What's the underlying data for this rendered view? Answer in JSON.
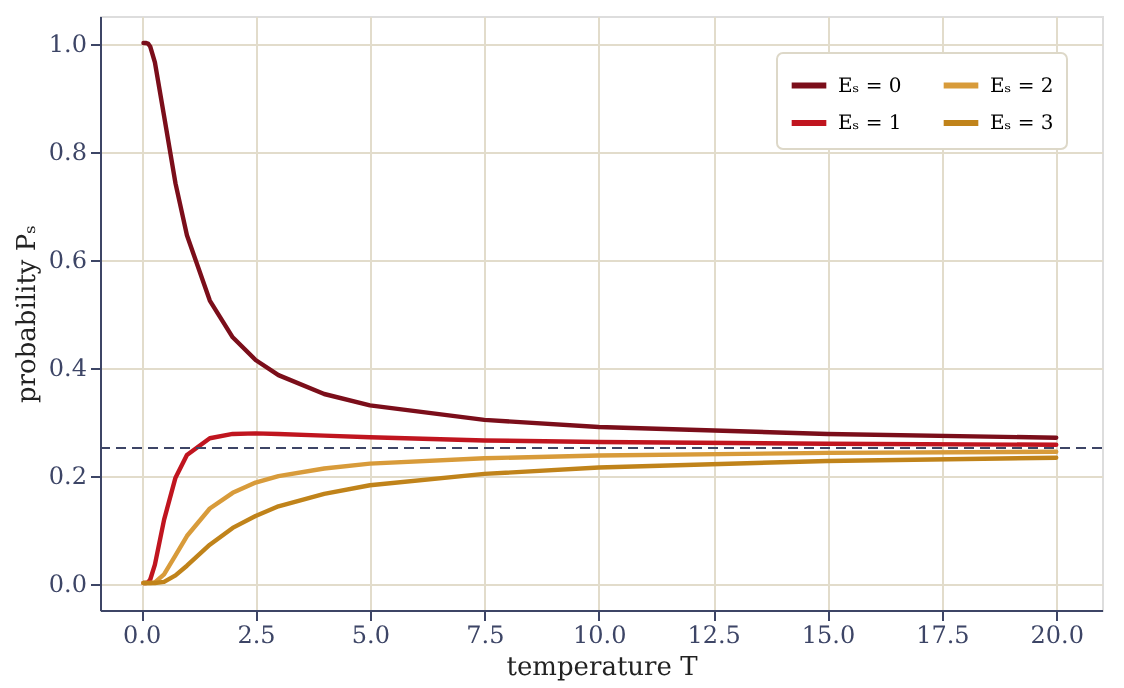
{
  "chart_data": {
    "type": "line",
    "xlabel": "temperature T",
    "ylabel": "probability Pₛ",
    "x": [
      0.05,
      0.1,
      0.15,
      0.2,
      0.3,
      0.5,
      0.75,
      1,
      1.5,
      2,
      2.5,
      3,
      4,
      5,
      7.5,
      10,
      15,
      20
    ],
    "series": [
      {
        "name": "Eₛ = 0",
        "color": "#7b0e1a",
        "values": [
          1,
          1,
          0.999,
          0.993,
          0.964,
          0.865,
          0.74,
          0.644,
          0.523,
          0.455,
          0.413,
          0.385,
          0.35,
          0.329,
          0.302,
          0.289,
          0.276,
          0.269
        ]
      },
      {
        "name": "Eₛ = 1",
        "color": "#c0151f",
        "values": [
          0,
          0,
          0.001,
          0.007,
          0.034,
          0.117,
          0.195,
          0.237,
          0.268,
          0.276,
          0.277,
          0.276,
          0.273,
          0.27,
          0.264,
          0.261,
          0.258,
          0.256
        ]
      },
      {
        "name": "Eₛ = 2",
        "color": "#d89b3a",
        "values": [
          0,
          0,
          0,
          0,
          0.001,
          0.016,
          0.051,
          0.087,
          0.138,
          0.167,
          0.186,
          0.198,
          0.212,
          0.221,
          0.231,
          0.236,
          0.241,
          0.243
        ]
      },
      {
        "name": "Eₛ = 3",
        "color": "#c0831a",
        "values": [
          0,
          0,
          0,
          0,
          0,
          0.002,
          0.014,
          0.032,
          0.071,
          0.102,
          0.124,
          0.142,
          0.165,
          0.181,
          0.202,
          0.214,
          0.226,
          0.232
        ]
      }
    ],
    "xlim": [
      -0.9,
      21
    ],
    "xticks": [
      {
        "value": 0,
        "label": "0.0"
      },
      {
        "value": 2.5,
        "label": "2.5"
      },
      {
        "value": 5,
        "label": "5.0"
      },
      {
        "value": 7.5,
        "label": "7.5"
      },
      {
        "value": 10,
        "label": "10.0"
      },
      {
        "value": 12.5,
        "label": "12.5"
      },
      {
        "value": 15,
        "label": "15.0"
      },
      {
        "value": 17.5,
        "label": "17.5"
      },
      {
        "value": 20,
        "label": "20.0"
      }
    ],
    "ylim": [
      -0.05,
      1.05
    ],
    "yticks": [
      {
        "value": 0,
        "label": "0.0"
      },
      {
        "value": 0.2,
        "label": "0.2"
      },
      {
        "value": 0.4,
        "label": "0.4"
      },
      {
        "value": 0.6,
        "label": "0.6"
      },
      {
        "value": 0.8,
        "label": "0.8"
      },
      {
        "value": 1,
        "label": "1.0"
      }
    ],
    "ref_lines": [
      {
        "axis": "y",
        "value": 0.25,
        "color": "#3d4566",
        "line_style": "dashed"
      }
    ],
    "grid": true,
    "legend": "top right",
    "marker": "none",
    "line_style": "solid"
  }
}
